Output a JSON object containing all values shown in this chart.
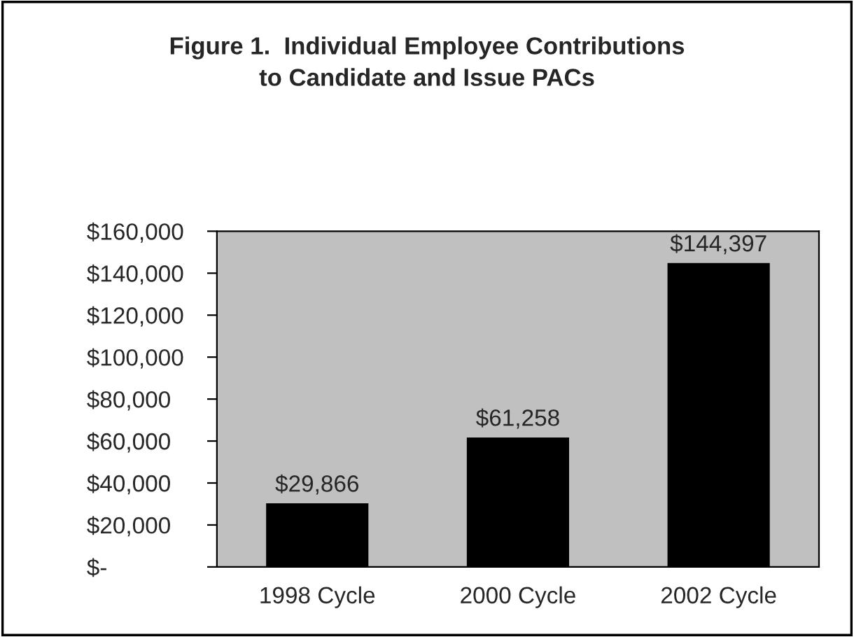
{
  "chart_data": {
    "type": "bar",
    "title": "Figure 1.  Individual Employee Contributions\nto Candidate and Issue PACs",
    "categories": [
      "1998 Cycle",
      "2000 Cycle",
      "2002 Cycle"
    ],
    "values": [
      29866,
      61258,
      144397
    ],
    "value_labels": [
      "$29,866",
      "$61,258",
      "$144,397"
    ],
    "color": "#000000",
    "ylim": [
      0,
      160000
    ],
    "yticks": [
      {
        "value": 0,
        "label": "$-"
      },
      {
        "value": 20000,
        "label": "$20,000"
      },
      {
        "value": 40000,
        "label": "$40,000"
      },
      {
        "value": 60000,
        "label": "$60,000"
      },
      {
        "value": 80000,
        "label": "$80,000"
      },
      {
        "value": 100000,
        "label": "$100,000"
      },
      {
        "value": 120000,
        "label": "$120,000"
      },
      {
        "value": 140000,
        "label": "$140,000"
      },
      {
        "value": 160000,
        "label": "$160,000"
      }
    ],
    "grid": false,
    "legend": false
  }
}
